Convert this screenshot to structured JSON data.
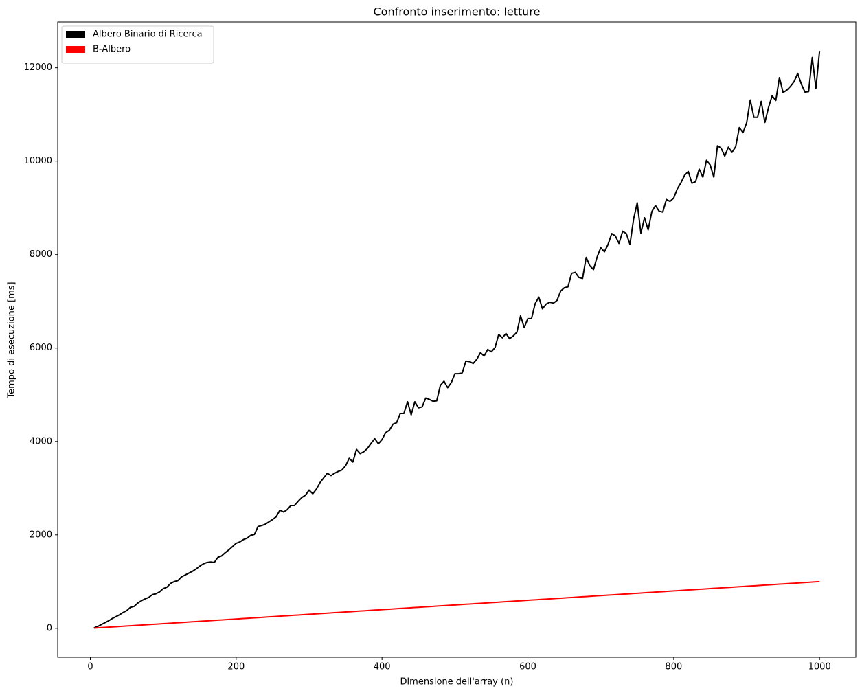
{
  "chart_data": {
    "type": "line",
    "title": "Confronto inserimento: letture",
    "x_label": "Dimensione dell'array (n)",
    "y_label": "Tempo di esecuzione [ms]",
    "x": [
      5,
      10,
      15,
      20,
      25,
      30,
      35,
      40,
      45,
      50,
      55,
      60,
      65,
      70,
      75,
      80,
      85,
      90,
      95,
      100,
      105,
      110,
      115,
      120,
      125,
      130,
      135,
      140,
      145,
      150,
      155,
      160,
      165,
      170,
      175,
      180,
      185,
      190,
      195,
      200,
      205,
      210,
      215,
      220,
      225,
      230,
      235,
      240,
      245,
      250,
      255,
      260,
      265,
      270,
      275,
      280,
      285,
      290,
      295,
      300,
      305,
      310,
      315,
      320,
      325,
      330,
      335,
      340,
      345,
      350,
      355,
      360,
      365,
      370,
      375,
      380,
      385,
      390,
      395,
      400,
      405,
      410,
      415,
      420,
      425,
      430,
      435,
      440,
      445,
      450,
      455,
      460,
      465,
      470,
      475,
      480,
      485,
      490,
      495,
      500,
      505,
      510,
      515,
      520,
      525,
      530,
      535,
      540,
      545,
      550,
      555,
      560,
      565,
      570,
      575,
      580,
      585,
      590,
      595,
      600,
      605,
      610,
      615,
      620,
      625,
      630,
      635,
      640,
      645,
      650,
      655,
      660,
      665,
      670,
      675,
      680,
      685,
      690,
      695,
      700,
      705,
      710,
      715,
      720,
      725,
      730,
      735,
      740,
      745,
      750,
      755,
      760,
      765,
      770,
      775,
      780,
      785,
      790,
      795,
      800,
      805,
      810,
      815,
      820,
      825,
      830,
      835,
      840,
      845,
      850,
      855,
      860,
      865,
      870,
      875,
      880,
      885,
      890,
      895,
      900,
      905,
      910,
      915,
      920,
      925,
      930,
      935,
      940,
      945,
      950,
      955,
      960,
      965,
      970,
      975,
      980,
      985,
      990,
      995,
      1000
    ],
    "series": [
      {
        "name": "Albero Binario di Ricerca",
        "color": "#000000",
        "values": [
          10,
          40,
          80,
          120,
          160,
          210,
          250,
          290,
          340,
          380,
          450,
          470,
          540,
          590,
          630,
          660,
          720,
          740,
          780,
          850,
          880,
          960,
          1000,
          1020,
          1100,
          1140,
          1180,
          1220,
          1270,
          1330,
          1380,
          1410,
          1420,
          1410,
          1520,
          1550,
          1620,
          1680,
          1750,
          1820,
          1850,
          1900,
          1930,
          1990,
          2010,
          2180,
          2200,
          2230,
          2280,
          2330,
          2390,
          2530,
          2490,
          2540,
          2630,
          2630,
          2720,
          2800,
          2850,
          2960,
          2880,
          2980,
          3120,
          3220,
          3320,
          3270,
          3320,
          3360,
          3390,
          3480,
          3640,
          3560,
          3830,
          3740,
          3780,
          3850,
          3960,
          4060,
          3950,
          4040,
          4190,
          4240,
          4370,
          4400,
          4600,
          4600,
          4850,
          4570,
          4850,
          4720,
          4740,
          4930,
          4900,
          4860,
          4870,
          5200,
          5290,
          5150,
          5260,
          5450,
          5450,
          5470,
          5720,
          5710,
          5670,
          5760,
          5900,
          5830,
          5970,
          5920,
          6010,
          6290,
          6220,
          6310,
          6200,
          6260,
          6340,
          6690,
          6440,
          6630,
          6630,
          6950,
          7090,
          6840,
          6940,
          6980,
          6960,
          7020,
          7220,
          7290,
          7310,
          7600,
          7620,
          7510,
          7490,
          7940,
          7760,
          7680,
          7950,
          8150,
          8060,
          8220,
          8450,
          8400,
          8240,
          8500,
          8450,
          8220,
          8760,
          9110,
          8460,
          8790,
          8530,
          8920,
          9050,
          8930,
          8910,
          9180,
          9140,
          9210,
          9410,
          9540,
          9700,
          9780,
          9530,
          9560,
          9830,
          9660,
          10020,
          9920,
          9660,
          10330,
          10280,
          10110,
          10300,
          10190,
          10310,
          10720,
          10610,
          10820,
          11310,
          10940,
          10940,
          11280,
          10830,
          11150,
          11400,
          11300,
          11790,
          11470,
          11520,
          11600,
          11700,
          11880,
          11650,
          11480,
          11490,
          12220,
          11560,
          12360
        ]
      },
      {
        "name": "B-Albero",
        "color": "#ff0000",
        "values": [
          5,
          10,
          15,
          20,
          25,
          30,
          35,
          40,
          45,
          50,
          55,
          60,
          65,
          70,
          75,
          80,
          85,
          90,
          95,
          100,
          105,
          110,
          115,
          120,
          125,
          130,
          135,
          140,
          145,
          150,
          155,
          160,
          165,
          170,
          175,
          180,
          185,
          190,
          195,
          200,
          205,
          210,
          215,
          220,
          225,
          230,
          235,
          240,
          245,
          250,
          255,
          260,
          265,
          270,
          275,
          280,
          285,
          290,
          295,
          300,
          305,
          310,
          315,
          320,
          325,
          330,
          335,
          340,
          345,
          350,
          355,
          360,
          365,
          370,
          375,
          380,
          385,
          390,
          395,
          400,
          405,
          410,
          415,
          420,
          425,
          430,
          435,
          440,
          445,
          450,
          455,
          460,
          465,
          470,
          475,
          480,
          485,
          490,
          495,
          500,
          505,
          510,
          515,
          520,
          525,
          530,
          535,
          540,
          545,
          550,
          555,
          560,
          565,
          570,
          575,
          580,
          585,
          590,
          595,
          600,
          605,
          610,
          615,
          620,
          625,
          630,
          635,
          640,
          645,
          650,
          655,
          660,
          665,
          670,
          675,
          680,
          685,
          690,
          695,
          700,
          705,
          710,
          715,
          720,
          725,
          730,
          735,
          740,
          745,
          750,
          755,
          760,
          765,
          770,
          775,
          780,
          785,
          790,
          795,
          800,
          805,
          810,
          815,
          820,
          825,
          830,
          835,
          840,
          845,
          850,
          855,
          860,
          865,
          870,
          875,
          880,
          885,
          890,
          895,
          900,
          905,
          910,
          915,
          920,
          925,
          930,
          935,
          940,
          945,
          950,
          955,
          960,
          965,
          970,
          975,
          980,
          985,
          990,
          995,
          1000
        ]
      }
    ],
    "xlim": [
      -44.75,
      1049.75
    ],
    "ylim": [
      -620,
      12980
    ],
    "xticks": [
      0,
      200,
      400,
      600,
      800,
      1000
    ],
    "yticks": [
      0,
      2000,
      4000,
      6000,
      8000,
      10000,
      12000
    ],
    "grid": false,
    "legend": "upper left"
  }
}
